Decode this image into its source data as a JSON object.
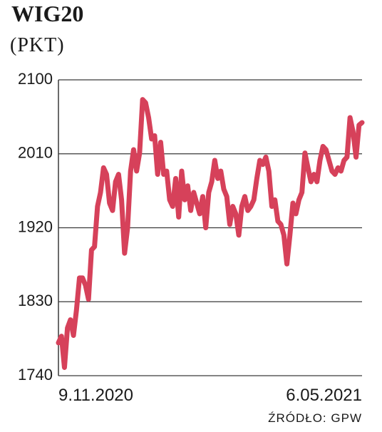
{
  "chart_data": {
    "type": "line",
    "title": "WIG20",
    "subtitle": "(PKT)",
    "source": "ŹRÓDŁO: GPW",
    "categories": [
      "9.11.2020",
      null,
      null,
      null,
      null,
      null,
      null,
      null,
      null,
      null,
      null,
      null,
      null,
      null,
      null,
      null,
      null,
      null,
      null,
      null,
      null,
      null,
      null,
      null,
      null,
      null,
      null,
      null,
      null,
      null,
      null,
      null,
      null,
      null,
      null,
      null,
      null,
      null,
      null,
      null,
      null,
      null,
      null,
      null,
      null,
      null,
      null,
      null,
      null,
      null,
      null,
      null,
      null,
      null,
      null,
      null,
      null,
      null,
      null,
      null,
      null,
      null,
      null,
      null,
      null,
      null,
      null,
      null,
      null,
      null,
      null,
      null,
      null,
      null,
      null,
      null,
      null,
      null,
      null,
      null,
      null,
      null,
      null,
      null,
      null,
      null,
      null,
      null,
      null,
      null,
      null,
      null,
      null,
      null,
      null,
      null,
      null,
      null,
      null,
      null,
      null,
      "6.05.2021"
    ],
    "series": [
      {
        "name": "WIG20",
        "color": "#d6415a",
        "values": [
          1780,
          1788,
          1750,
          1798,
          1808,
          1789,
          1820,
          1859,
          1859,
          1850,
          1833,
          1893,
          1897,
          1946,
          1963,
          1993,
          1985,
          1950,
          1941,
          1976,
          1985,
          1954,
          1889,
          1920,
          1989,
          2015,
          1989,
          2011,
          2076,
          2072,
          2054,
          2028,
          2032,
          1985,
          2024,
          1985,
          1989,
          1954,
          1946,
          1980,
          1933,
          1989,
          1954,
          1971,
          1941,
          1963,
          1950,
          1937,
          1958,
          1920,
          1963,
          1976,
          2002,
          1980,
          1989,
          1967,
          1958,
          1924,
          1946,
          1937,
          1911,
          1946,
          1958,
          1941,
          1946,
          1954,
          1980,
          2002,
          1997,
          2006,
          1989,
          1946,
          1954,
          1928,
          1924,
          1911,
          1876,
          1911,
          1950,
          1937,
          1954,
          1963,
          2011,
          1993,
          1976,
          1985,
          1976,
          2002,
          2019,
          2015,
          2002,
          1989,
          1985,
          1993,
          1989,
          2002,
          2006,
          2054,
          2037,
          2006,
          2045,
          2048
        ]
      }
    ],
    "ylim": [
      1740,
      2100
    ],
    "yticks": [
      1740,
      1830,
      1920,
      2010,
      2100
    ],
    "grid": true
  }
}
